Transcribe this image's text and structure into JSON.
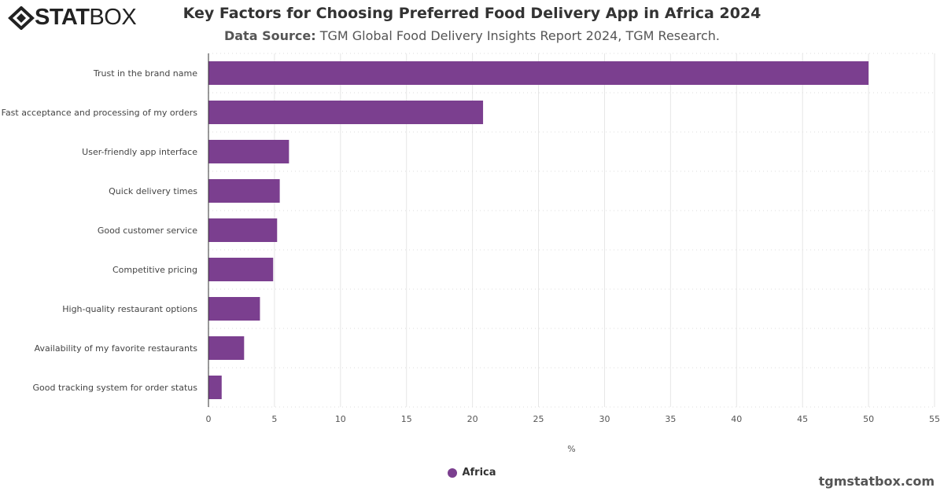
{
  "header": {
    "logo_bold": "STAT",
    "logo_light": "BOX",
    "title": "Key Factors for Choosing Preferred Food Delivery App in Africa 2024",
    "source_label": "Data Source:",
    "source_text": "TGM Global Food Delivery Insights Report 2024, TGM Research."
  },
  "chart_data": {
    "type": "bar",
    "orientation": "horizontal",
    "categories": [
      "Trust in the brand name",
      "Fast acceptance and processing of my orders",
      "User-friendly app interface",
      "Quick delivery times",
      "Good customer service",
      "Competitive pricing",
      "High-quality restaurant options",
      "Availability of my favorite restaurants",
      "Good tracking system for order status"
    ],
    "series": [
      {
        "name": "Africa",
        "color": "#7b3f8f",
        "values": [
          50.0,
          20.8,
          6.1,
          5.4,
          5.2,
          4.9,
          3.9,
          2.7,
          1.0
        ]
      }
    ],
    "xlabel": "%",
    "xlim": [
      0,
      55
    ],
    "xticks": [
      "0",
      "5",
      "10",
      "15",
      "20",
      "25",
      "30",
      "35",
      "40",
      "45",
      "50",
      "55"
    ],
    "grid": true,
    "legend": "bottom-center"
  },
  "footer": {
    "site": "tgmstatbox.com"
  }
}
